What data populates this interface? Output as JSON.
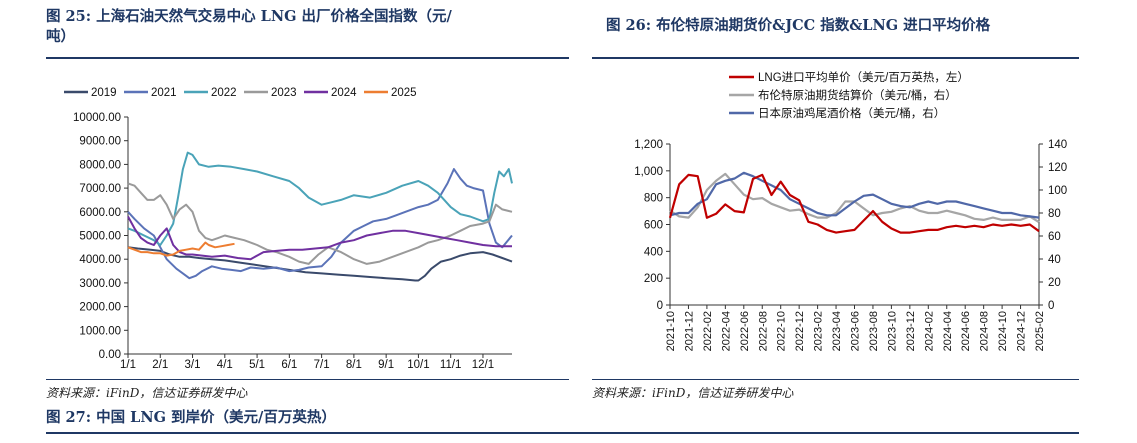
{
  "fig25": {
    "title_line1": "图 25: 上海石油天然气交易中心 LNG 出厂价格全国指数（元/",
    "title_line2": "吨）",
    "source": "资料来源：iFinD，信达证券研发中心"
  },
  "fig26": {
    "title": "图 26: 布伦特原油期货价&JCC 指数&LNG 进口平均价格",
    "source": "资料来源：iFinD，信达证券研发中心"
  },
  "fig27": {
    "title": "图 27: 中国 LNG 到岸价（美元/百万英热）"
  },
  "colors": {
    "heading": "#1f3864"
  },
  "chart_data": [
    {
      "type": "line",
      "title": "",
      "xlabel": "",
      "ylabel": "",
      "ylim": [
        0,
        10000
      ],
      "yticks": [
        "0.00",
        "1000.00",
        "2000.00",
        "3000.00",
        "4000.00",
        "5000.00",
        "6000.00",
        "7000.00",
        "8000.00",
        "9000.00",
        "10000.00"
      ],
      "xlim": [
        1,
        12.9
      ],
      "xticks": [
        "1/1",
        "2/1",
        "3/1",
        "4/1",
        "5/1",
        "6/1",
        "7/1",
        "8/1",
        "9/1",
        "10/1",
        "11/1",
        "12/1"
      ],
      "legend": "top",
      "grid": false,
      "series": [
        {
          "name": "2019",
          "color": "#3a4a6b",
          "x": [
            1.0,
            1.3,
            1.7,
            2.0,
            2.3,
            2.6,
            2.9,
            3.2,
            3.6,
            4.0,
            4.5,
            5.0,
            5.5,
            6.0,
            6.5,
            7.0,
            7.5,
            8.0,
            8.5,
            9.0,
            9.5,
            9.9,
            10.0,
            10.2,
            10.4,
            10.7,
            11.0,
            11.3,
            11.6,
            12.0,
            12.3,
            12.6,
            12.9
          ],
          "y": [
            4500,
            4450,
            4400,
            4350,
            4200,
            4100,
            4100,
            4050,
            4000,
            3950,
            3850,
            3750,
            3650,
            3550,
            3450,
            3400,
            3350,
            3300,
            3250,
            3200,
            3150,
            3100,
            3100,
            3300,
            3600,
            3900,
            4000,
            4150,
            4250,
            4300,
            4200,
            4050,
            3900
          ]
        },
        {
          "name": "2021",
          "color": "#5b73b8",
          "x": [
            1.0,
            1.2,
            1.5,
            1.8,
            2.0,
            2.2,
            2.5,
            2.7,
            2.9,
            3.1,
            3.3,
            3.6,
            3.9,
            4.2,
            4.5,
            4.8,
            5.2,
            5.6,
            6.0,
            6.3,
            6.6,
            7.0,
            7.3,
            7.6,
            8.0,
            8.3,
            8.6,
            9.0,
            9.3,
            9.6,
            10.0,
            10.3,
            10.6,
            10.9,
            11.1,
            11.3,
            11.5,
            11.7,
            12.0,
            12.2,
            12.4,
            12.6,
            12.9
          ],
          "y": [
            6000,
            5700,
            5300,
            5000,
            4500,
            4000,
            3600,
            3400,
            3200,
            3300,
            3500,
            3700,
            3600,
            3550,
            3500,
            3650,
            3600,
            3650,
            3500,
            3550,
            3650,
            3700,
            4100,
            4700,
            5200,
            5400,
            5600,
            5700,
            5850,
            6000,
            6200,
            6300,
            6500,
            7200,
            7800,
            7400,
            7100,
            7000,
            6900,
            5500,
            4700,
            4500,
            5000
          ]
        },
        {
          "name": "2022",
          "color": "#4aa3b8",
          "x": [
            1.0,
            1.2,
            1.5,
            1.8,
            2.0,
            2.2,
            2.4,
            2.55,
            2.7,
            2.85,
            3.0,
            3.2,
            3.5,
            3.8,
            4.2,
            4.6,
            5.0,
            5.5,
            6.0,
            6.3,
            6.6,
            7.0,
            7.3,
            7.6,
            8.0,
            8.5,
            9.0,
            9.5,
            10.0,
            10.3,
            10.6,
            11.0,
            11.3,
            11.6,
            12.0,
            12.2,
            12.35,
            12.5,
            12.65,
            12.8,
            12.9
          ],
          "y": [
            5300,
            5200,
            5000,
            4800,
            4600,
            5000,
            5500,
            6600,
            7800,
            8500,
            8400,
            8000,
            7900,
            7950,
            7900,
            7800,
            7700,
            7500,
            7300,
            7000,
            6600,
            6300,
            6400,
            6500,
            6700,
            6600,
            6800,
            7100,
            7300,
            7100,
            6800,
            6200,
            5900,
            5800,
            5600,
            5700,
            6800,
            7700,
            7500,
            7800,
            7200
          ]
        },
        {
          "name": "2023",
          "color": "#9a9a9a",
          "x": [
            1.0,
            1.2,
            1.4,
            1.6,
            1.8,
            2.0,
            2.2,
            2.4,
            2.6,
            2.8,
            3.0,
            3.2,
            3.4,
            3.6,
            3.8,
            4.0,
            4.3,
            4.6,
            5.0,
            5.3,
            5.6,
            6.0,
            6.3,
            6.6,
            6.9,
            7.2,
            7.6,
            8.0,
            8.4,
            8.8,
            9.2,
            9.6,
            10.0,
            10.3,
            10.6,
            11.0,
            11.3,
            11.6,
            12.0,
            12.2,
            12.4,
            12.6,
            12.9
          ],
          "y": [
            7200,
            7100,
            6800,
            6500,
            6500,
            6700,
            6300,
            5700,
            6100,
            6300,
            6000,
            5200,
            4900,
            4800,
            4900,
            5000,
            4900,
            4800,
            4600,
            4400,
            4300,
            4100,
            3900,
            3800,
            4200,
            4500,
            4300,
            4000,
            3800,
            3900,
            4100,
            4300,
            4500,
            4700,
            4800,
            5000,
            5200,
            5400,
            5500,
            5600,
            6300,
            6100,
            6000
          ]
        },
        {
          "name": "2024",
          "color": "#7030a0",
          "x": [
            1.0,
            1.2,
            1.4,
            1.6,
            1.8,
            2.0,
            2.2,
            2.4,
            2.6,
            2.8,
            3.0,
            3.3,
            3.6,
            4.0,
            4.4,
            4.8,
            5.2,
            5.6,
            6.0,
            6.4,
            6.8,
            7.2,
            7.6,
            8.0,
            8.4,
            8.8,
            9.2,
            9.6,
            10.0,
            10.4,
            10.8,
            11.2,
            11.6,
            12.0,
            12.4,
            12.9
          ],
          "y": [
            5800,
            5300,
            4900,
            4700,
            4600,
            5000,
            5300,
            4600,
            4300,
            4200,
            4200,
            4150,
            4100,
            4150,
            4050,
            4000,
            4300,
            4350,
            4400,
            4400,
            4450,
            4500,
            4700,
            4800,
            5000,
            5100,
            5200,
            5200,
            5100,
            5000,
            4900,
            4800,
            4700,
            4600,
            4550,
            4550
          ]
        },
        {
          "name": "2025",
          "color": "#ed7d31",
          "x": [
            1.0,
            1.2,
            1.4,
            1.6,
            1.8,
            2.0,
            2.2,
            2.4,
            2.6,
            2.8,
            3.0,
            3.2,
            3.4,
            3.5,
            3.7,
            3.9,
            4.1,
            4.3
          ],
          "y": [
            4500,
            4400,
            4300,
            4300,
            4250,
            4250,
            4150,
            4200,
            4350,
            4400,
            4450,
            4400,
            4700,
            4600,
            4500,
            4550,
            4600,
            4650
          ]
        }
      ]
    },
    {
      "type": "line",
      "title": "",
      "xlabel": "",
      "ylabel": "",
      "legend": "top",
      "grid": false,
      "ylim_left": [
        0,
        1200
      ],
      "yticks_left": [
        "0",
        "200",
        "400",
        "600",
        "800",
        "1,000",
        "1,200"
      ],
      "ylim_right": [
        0,
        140
      ],
      "yticks_right": [
        "0",
        "20",
        "40",
        "60",
        "80",
        "100",
        "120",
        "140"
      ],
      "xlim": [
        0,
        40
      ],
      "xticks": [
        "2021-10",
        "2021-12",
        "2022-02",
        "2022-04",
        "2022-06",
        "2022-08",
        "2022-10",
        "2022-12",
        "2023-02",
        "2023-04",
        "2023-06",
        "2023-08",
        "2023-10",
        "2023-12",
        "2024-02",
        "2024-04",
        "2024-06",
        "2024-08",
        "2024-10",
        "2024-12",
        "2025-02"
      ],
      "series": [
        {
          "name": "LNG进口平均单价（美元/百万英热，左）",
          "axis": "left",
          "color": "#c00000",
          "x": [
            0,
            1,
            2,
            3,
            4,
            5,
            6,
            7,
            8,
            9,
            10,
            11,
            12,
            13,
            14,
            15,
            16,
            17,
            18,
            19,
            20,
            21,
            22,
            23,
            24,
            25,
            26,
            27,
            28,
            29,
            30,
            31,
            32,
            33,
            34,
            35,
            36,
            37,
            38,
            39,
            40
          ],
          "y": [
            650,
            900,
            970,
            960,
            650,
            680,
            750,
            700,
            690,
            940,
            970,
            820,
            920,
            820,
            780,
            620,
            600,
            560,
            540,
            550,
            560,
            630,
            700,
            620,
            570,
            540,
            540,
            550,
            560,
            560,
            580,
            590,
            580,
            590,
            580,
            600,
            590,
            600,
            590,
            600,
            550
          ]
        },
        {
          "name": "布伦特原油期货结算价（美元/桶，右）",
          "axis": "right",
          "color": "#a6a6a6",
          "x": [
            0,
            1,
            2,
            3,
            4,
            5,
            6,
            7,
            8,
            9,
            10,
            11,
            12,
            13,
            14,
            15,
            16,
            17,
            18,
            19,
            20,
            21,
            22,
            23,
            24,
            25,
            26,
            27,
            28,
            29,
            30,
            31,
            32,
            33,
            34,
            35,
            36,
            37,
            38,
            39,
            40
          ],
          "y": [
            82,
            77,
            76,
            85,
            100,
            108,
            114,
            105,
            96,
            92,
            93,
            88,
            85,
            82,
            83,
            79,
            76,
            76,
            80,
            90,
            90,
            84,
            78,
            80,
            81,
            84,
            86,
            82,
            80,
            80,
            82,
            80,
            78,
            75,
            74,
            76,
            74,
            74,
            74,
            77,
            72
          ]
        },
        {
          "name": "日本原油鸡尾酒价格（美元/桶，右）",
          "axis": "right",
          "color": "#5068a8",
          "x": [
            0,
            1,
            2,
            3,
            4,
            5,
            6,
            7,
            8,
            9,
            10,
            11,
            12,
            13,
            14,
            15,
            16,
            17,
            18,
            19,
            20,
            21,
            22,
            23,
            24,
            25,
            26,
            27,
            28,
            29,
            30,
            31,
            32,
            33,
            34,
            35,
            36,
            37,
            38,
            39,
            40
          ],
          "y": [
            78,
            80,
            80,
            88,
            92,
            105,
            108,
            110,
            115,
            112,
            108,
            104,
            100,
            92,
            88,
            84,
            80,
            78,
            78,
            84,
            90,
            95,
            96,
            92,
            88,
            86,
            85,
            88,
            90,
            88,
            90,
            90,
            88,
            86,
            84,
            82,
            80,
            80,
            78,
            77,
            76
          ]
        }
      ]
    }
  ]
}
